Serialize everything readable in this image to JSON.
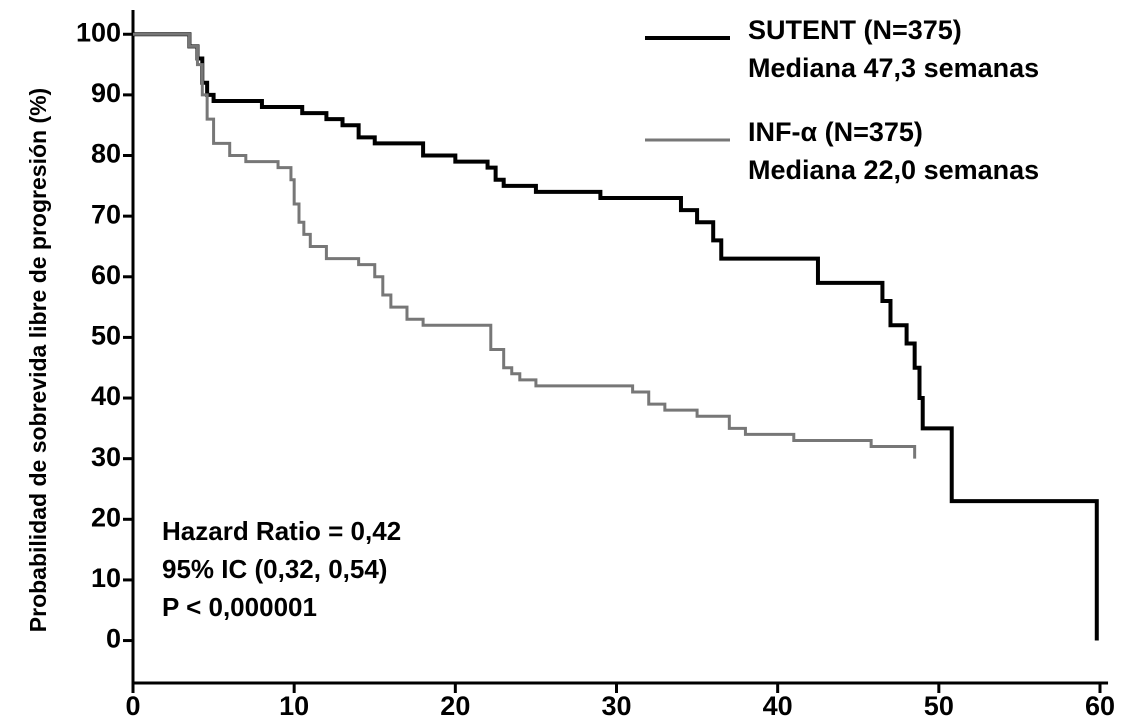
{
  "chart_data": {
    "type": "step",
    "y_label": "Probabilidad de sobrevida libre de progresión (%)",
    "xlim": [
      0,
      60.5
    ],
    "ylim": [
      -7,
      104
    ],
    "xticks": [
      0,
      10,
      20,
      30,
      40,
      50,
      60
    ],
    "yticks": [
      0,
      10,
      20,
      30,
      40,
      50,
      60,
      70,
      80,
      90,
      100
    ],
    "series": [
      {
        "name": "SUTENT (N=375)",
        "median_label": "Mediana 47,3 semanas",
        "color": "#000000",
        "width": 4,
        "x": [
          0,
          3,
          3.5,
          4,
          4.3,
          4.6,
          5,
          8,
          10.5,
          12,
          13,
          14,
          15,
          18,
          20,
          22,
          22.5,
          23,
          25,
          29,
          34,
          35,
          36,
          36.5,
          42.5,
          46.5,
          47,
          48,
          48.5,
          48.8,
          49,
          50.8,
          59.8
        ],
        "values": [
          100,
          100,
          98,
          96,
          92,
          90,
          89,
          88,
          87,
          86,
          85,
          83,
          82,
          80,
          79,
          78,
          76,
          75,
          74,
          73,
          71,
          69,
          66,
          63,
          59,
          56,
          52,
          49,
          45,
          40,
          35,
          23,
          0
        ]
      },
      {
        "name": "INF-α (N=375)",
        "median_label": "Mediana 22,0 semanas",
        "color": "#777777",
        "width": 3,
        "x": [
          0,
          3,
          3.5,
          4,
          4.3,
          4.6,
          5,
          6,
          7,
          9,
          9.8,
          10,
          10.3,
          10.6,
          11,
          12,
          14,
          15,
          15.5,
          16,
          17,
          18,
          22.2,
          23,
          23.5,
          24,
          25,
          31,
          32,
          33,
          35,
          37,
          38,
          41,
          45.8,
          48.5
        ],
        "values": [
          100,
          100,
          98,
          95,
          90,
          86,
          82,
          80,
          79,
          78,
          76,
          72,
          69,
          67,
          65,
          63,
          62,
          60,
          57,
          55,
          53,
          52,
          48,
          45,
          44,
          43,
          42,
          41,
          39,
          38,
          37,
          35,
          34,
          33,
          32,
          30
        ]
      }
    ],
    "annotations": [
      "Hazard Ratio = 0,42",
      "95% IC (0,32, 0,54)",
      "P < 0,000001"
    ]
  }
}
